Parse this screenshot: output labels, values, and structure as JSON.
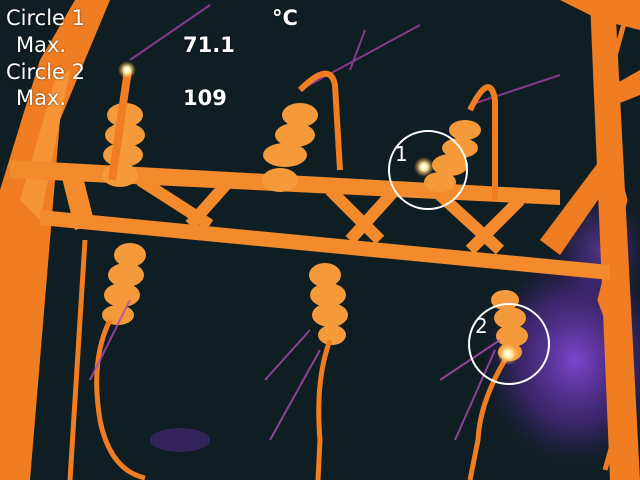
{
  "readout": {
    "unit": "°C",
    "rows": [
      {
        "label": "Circle 1",
        "stat": "Max.",
        "value": "71.1"
      },
      {
        "label": "Circle 2",
        "stat": "Max.",
        "value": "109"
      }
    ]
  },
  "markers": [
    {
      "number": "1"
    },
    {
      "number": "2"
    }
  ],
  "palette": {
    "background": "#0f1e22",
    "warm": "#f08a2a",
    "hot": "#ffb35a",
    "hotspot": "#fff4c8",
    "cool_glow": "#7a3fd0"
  }
}
